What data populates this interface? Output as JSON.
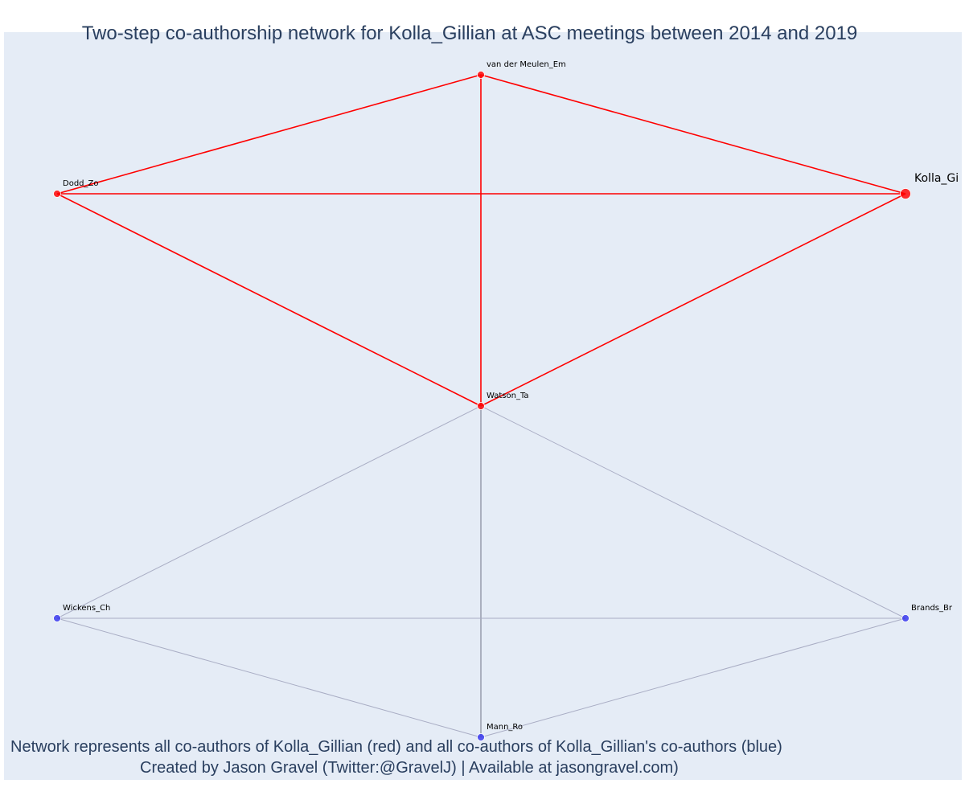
{
  "title": "Two-step co-authorship network for Kolla_Gillian at ASC meetings between 2014 and 2019",
  "caption_line_1": "Network represents all co-authors of Kolla_Gillian (red) and all co-authors of Kolla_Gillian's co-authors (blue)",
  "caption_line_2": "Created by Jason Gravel (Twitter:@GravelJ) | Available at jasongravel.com)",
  "colors": {
    "background": "#e5ecf6",
    "first_step": "#ff0000",
    "second_step": "#3333ee",
    "first_step_edge": "#ff0000",
    "second_step_edge": "#a9adc4",
    "vertical_edge": "#6e7286",
    "title_text": "#2a3f5f"
  },
  "nodes": [
    {
      "id": "kolla",
      "label": "Kolla_Gi",
      "group": "first-step",
      "ego": true
    },
    {
      "id": "vandermeulen",
      "label": "van der Meulen_Em",
      "group": "first-step",
      "ego": false
    },
    {
      "id": "dodd",
      "label": "Dodd_Zo",
      "group": "first-step",
      "ego": false
    },
    {
      "id": "watson",
      "label": "Watson_Ta",
      "group": "first-step",
      "ego": false
    },
    {
      "id": "wickens",
      "label": "Wickens_Ch",
      "group": "second-step",
      "ego": false
    },
    {
      "id": "brands",
      "label": "Brands_Br",
      "group": "second-step",
      "ego": false
    },
    {
      "id": "mann",
      "label": "Mann_Ro",
      "group": "second-step",
      "ego": false
    }
  ],
  "edges": [
    {
      "source": "vandermeulen",
      "target": "dodd",
      "group": "first-step"
    },
    {
      "source": "vandermeulen",
      "target": "kolla",
      "group": "first-step"
    },
    {
      "source": "vandermeulen",
      "target": "watson",
      "group": "first-step"
    },
    {
      "source": "dodd",
      "target": "kolla",
      "group": "first-step"
    },
    {
      "source": "dodd",
      "target": "watson",
      "group": "first-step"
    },
    {
      "source": "watson",
      "target": "kolla",
      "group": "first-step"
    },
    {
      "source": "watson",
      "target": "wickens",
      "group": "second-step"
    },
    {
      "source": "watson",
      "target": "brands",
      "group": "second-step"
    },
    {
      "source": "watson",
      "target": "mann",
      "group": "second-step"
    },
    {
      "source": "wickens",
      "target": "brands",
      "group": "second-step"
    },
    {
      "source": "wickens",
      "target": "mann",
      "group": "second-step"
    },
    {
      "source": "brands",
      "target": "mann",
      "group": "second-step"
    }
  ]
}
